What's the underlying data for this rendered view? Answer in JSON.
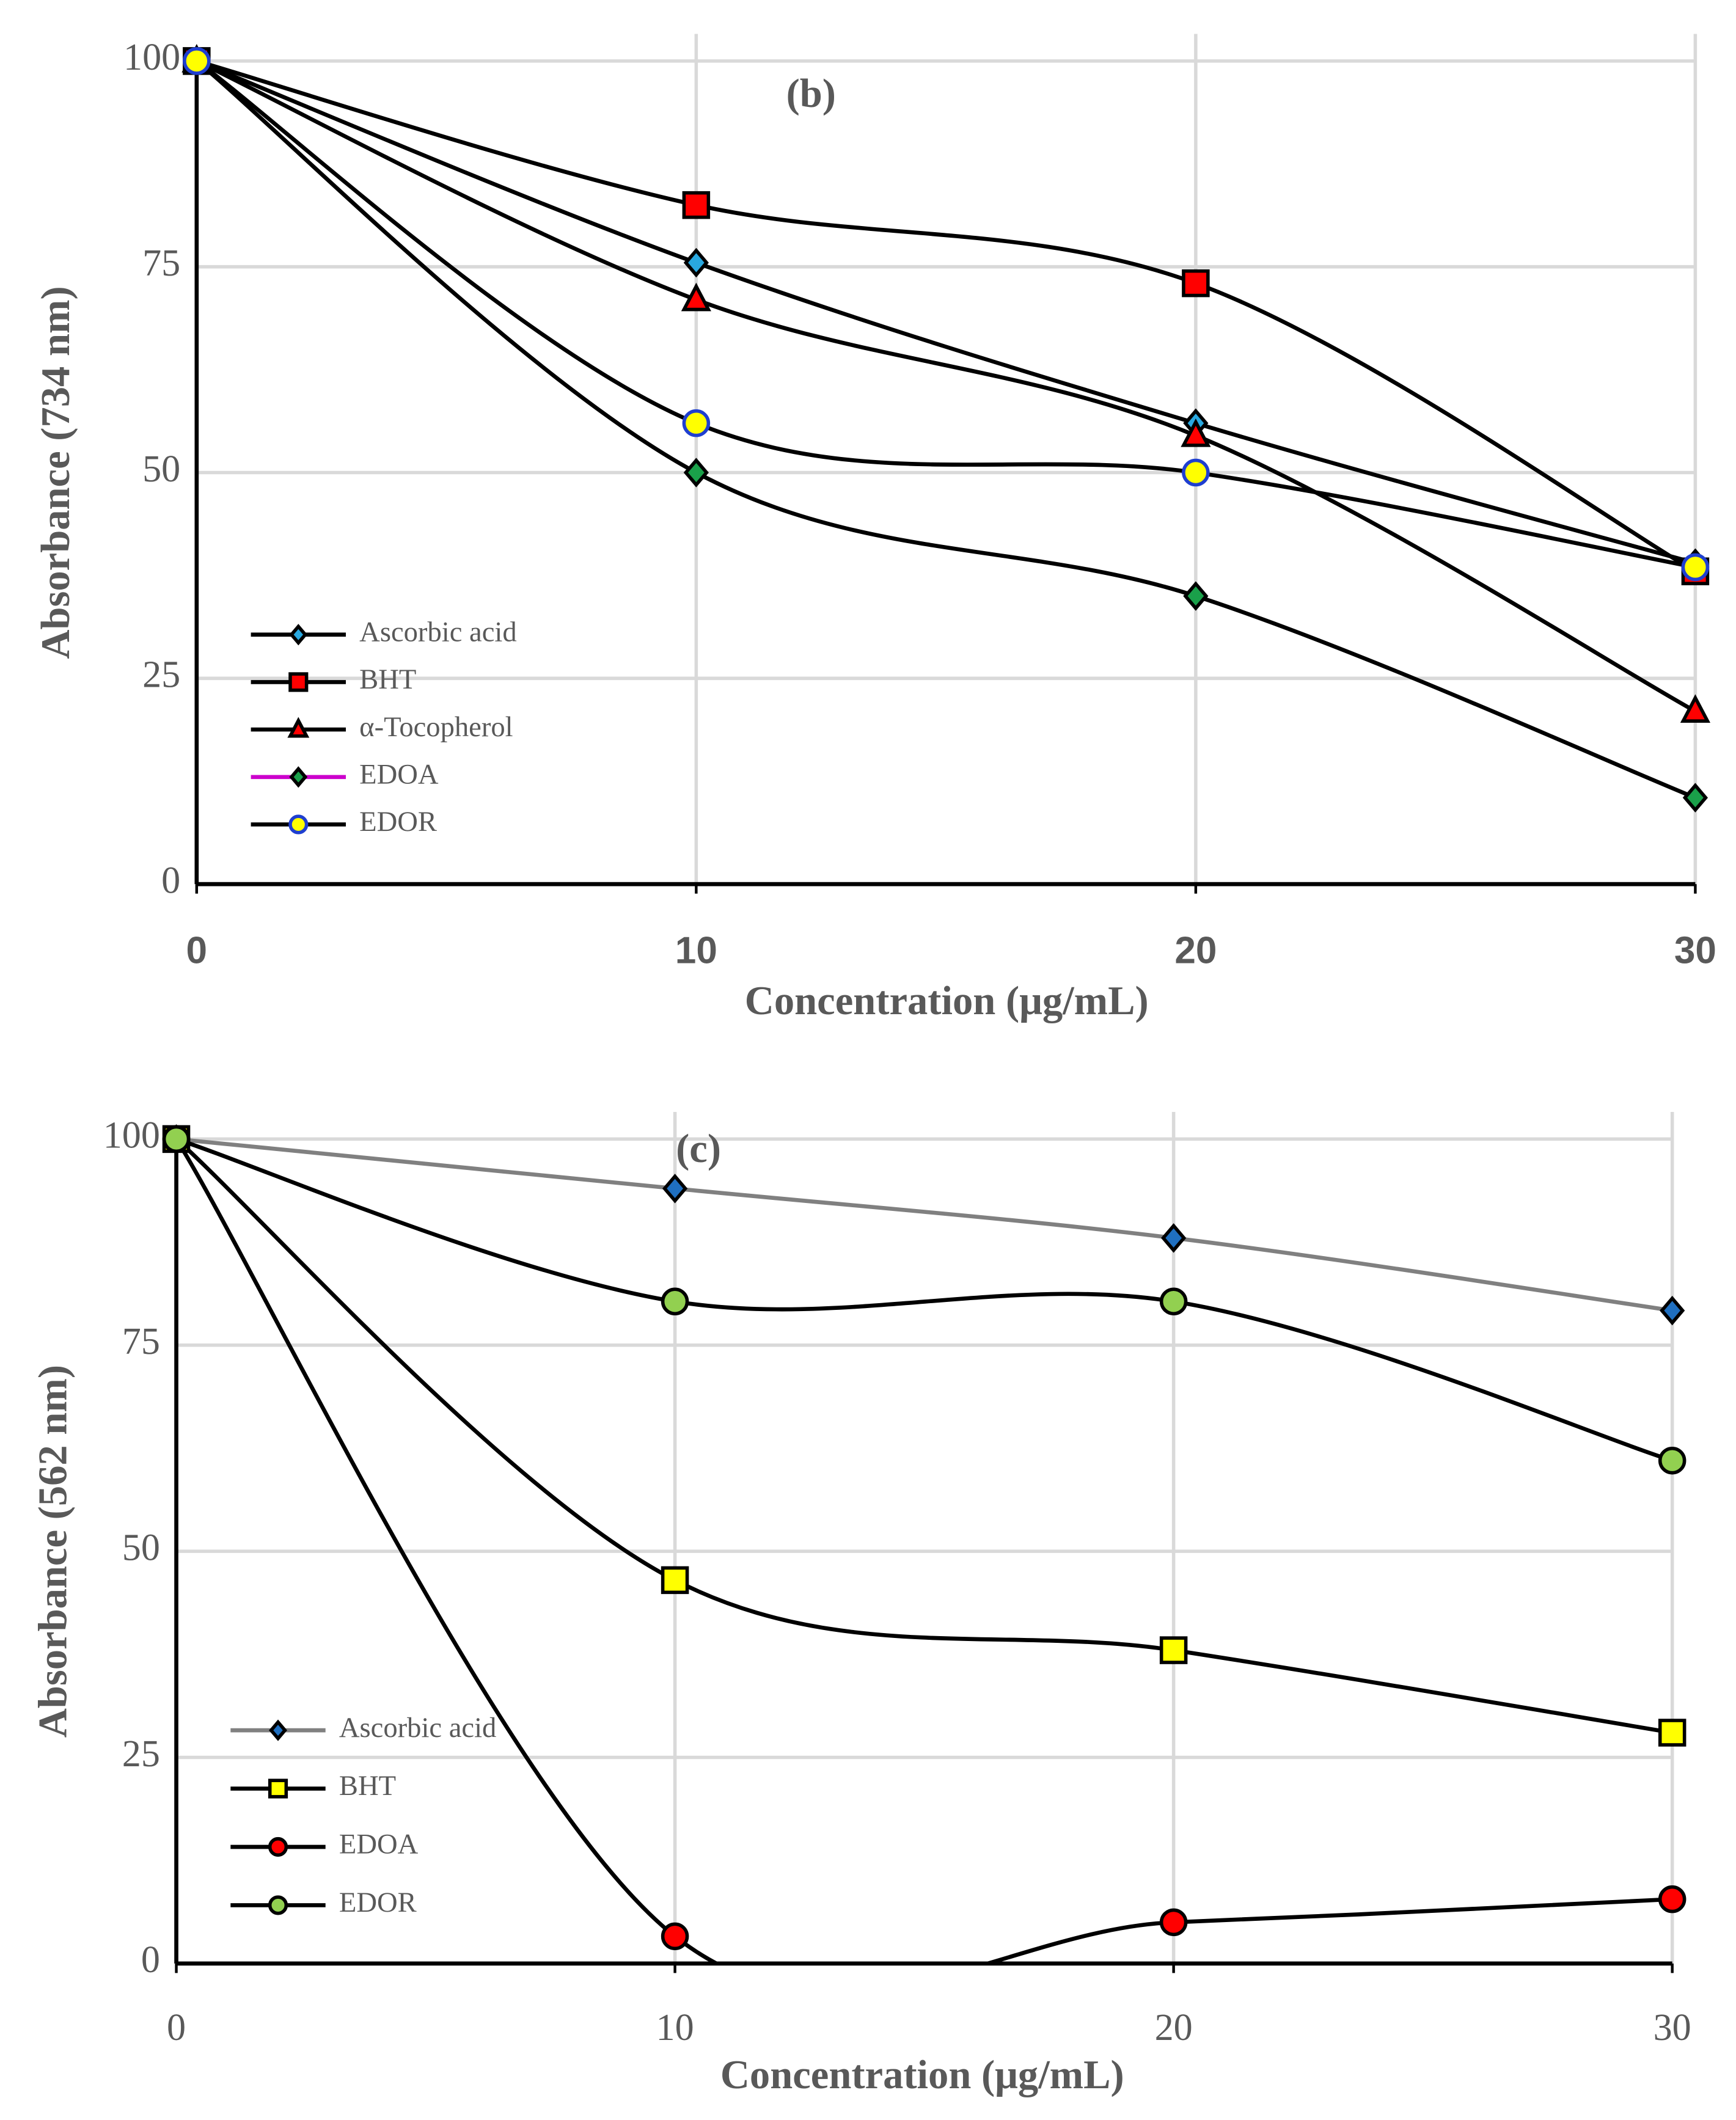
{
  "chart_data": [
    {
      "type": "line",
      "title": "(b)",
      "x_label": "Concentration (μg/mL)",
      "y_label": "Absorbance (734 nm)",
      "x": [
        0,
        10,
        20,
        30
      ],
      "xlim": [
        0,
        30
      ],
      "xticks": [
        0,
        10,
        20,
        30
      ],
      "xticks_bold": true,
      "ylim": [
        0,
        100
      ],
      "yticks": [
        0,
        25,
        50,
        75,
        100
      ],
      "grid": true,
      "smooth": true,
      "legend": "lower left",
      "series": [
        {
          "name": "Ascorbic acid",
          "color": "#000000",
          "marker": "diamond",
          "marker_color": "#29a8e0",
          "marker_edge": "#000000",
          "values": [
            100,
            75.5,
            56,
            39
          ]
        },
        {
          "name": "BHT",
          "color": "#000000",
          "marker": "square",
          "marker_color": "#ff0000",
          "marker_edge": "#000000",
          "values": [
            100,
            82.5,
            73,
            38
          ]
        },
        {
          "name": "α-Tocopherol",
          "color": "#000000",
          "marker": "triangle",
          "marker_color": "#ff0000",
          "marker_edge": "#000000",
          "values": [
            100,
            71,
            54.5,
            21
          ]
        },
        {
          "name": "EDOA",
          "color": "#000000",
          "legend_color": "#cc00cc",
          "marker": "diamond",
          "marker_color": "#1aa04a",
          "marker_edge": "#000000",
          "values": [
            100,
            50,
            35,
            10.5
          ]
        },
        {
          "name": "EDOR",
          "color": "#000000",
          "marker": "circle",
          "marker_color": "#ffff00",
          "marker_edge": "#1f3fd0",
          "values": [
            100,
            56,
            50,
            38.5
          ]
        }
      ]
    },
    {
      "type": "line",
      "title": "(c)",
      "x_label": "Concentration (μg/mL)",
      "y_label": "Absorbance (562 nm)",
      "x": [
        0,
        10,
        20,
        30
      ],
      "xlim": [
        0,
        30
      ],
      "xticks": [
        0,
        10,
        20,
        30
      ],
      "xticks_bold": false,
      "ylim": [
        0,
        100
      ],
      "yticks": [
        0,
        25,
        50,
        75,
        100
      ],
      "grid": true,
      "smooth": true,
      "legend": "lower left",
      "series": [
        {
          "name": "Ascorbic acid",
          "color": "#808080",
          "marker": "diamond",
          "marker_color": "#1f6fc0",
          "marker_edge": "#000000",
          "values": [
            100,
            94,
            88,
            79.2
          ]
        },
        {
          "name": "BHT",
          "color": "#000000",
          "marker": "square",
          "marker_color": "#ffff00",
          "marker_edge": "#000000",
          "values": [
            100,
            46.5,
            38,
            28
          ]
        },
        {
          "name": "EDOA",
          "color": "#000000",
          "marker": "circle",
          "marker_color": "#ff0000",
          "marker_edge": "#000000",
          "values": [
            100,
            3.3,
            5,
            7.8
          ]
        },
        {
          "name": "EDOR",
          "color": "#000000",
          "marker": "circle",
          "marker_color": "#92d050",
          "marker_edge": "#000000",
          "values": [
            100,
            80.3,
            80.3,
            61
          ]
        }
      ]
    }
  ]
}
